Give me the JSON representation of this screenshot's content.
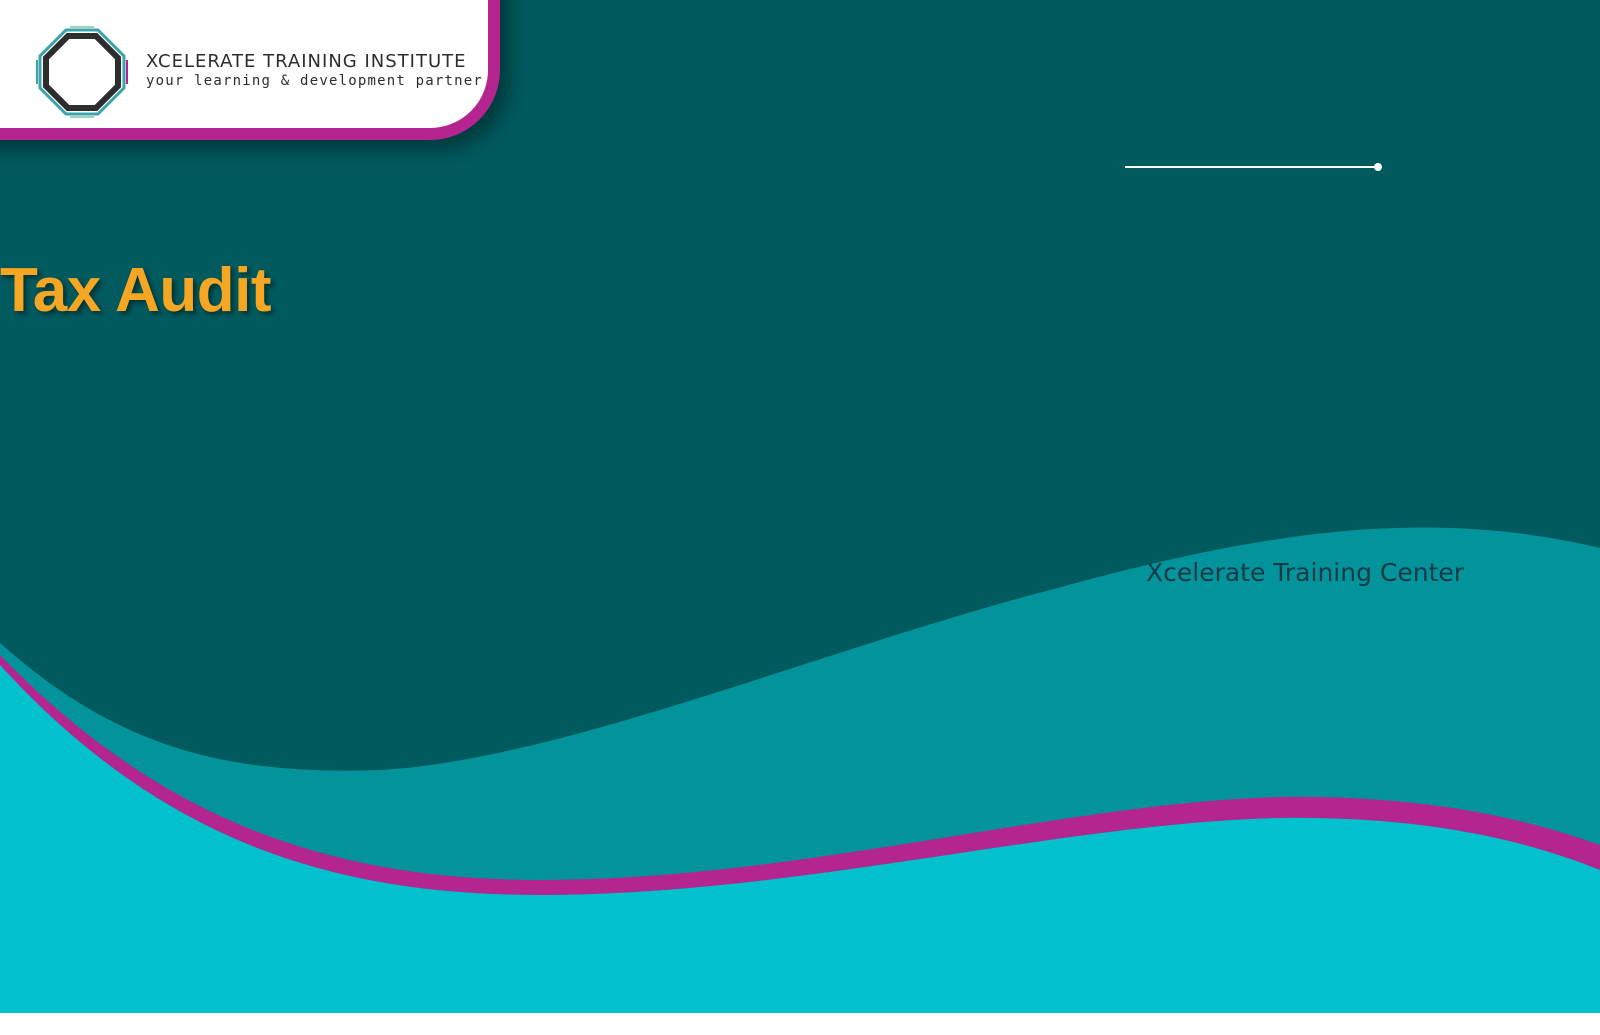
{
  "brand": {
    "name": "XCELERATE TRAINING INSTITUTE",
    "tagline": "your learning & development partner"
  },
  "slide": {
    "title": "Tax Audit",
    "subtitle": "Xcelerate Training Center"
  },
  "colors": {
    "background": "#005a5e",
    "wave_mid": "#03939b",
    "wave_light": "#00c1cc",
    "accent_magenta": "#b5258f",
    "title_orange": "#f5a623"
  }
}
